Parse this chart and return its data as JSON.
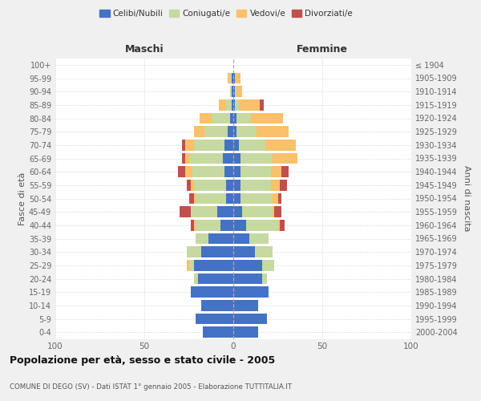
{
  "age_groups": [
    "0-4",
    "5-9",
    "10-14",
    "15-19",
    "20-24",
    "25-29",
    "30-34",
    "35-39",
    "40-44",
    "45-49",
    "50-54",
    "55-59",
    "60-64",
    "65-69",
    "70-74",
    "75-79",
    "80-84",
    "85-89",
    "90-94",
    "95-99",
    "100+"
  ],
  "birth_years": [
    "2000-2004",
    "1995-1999",
    "1990-1994",
    "1985-1989",
    "1980-1984",
    "1975-1979",
    "1970-1974",
    "1965-1969",
    "1960-1964",
    "1955-1959",
    "1950-1954",
    "1945-1949",
    "1940-1944",
    "1935-1939",
    "1930-1934",
    "1925-1929",
    "1920-1924",
    "1915-1919",
    "1910-1914",
    "1905-1909",
    "≤ 1904"
  ],
  "male_celibe": [
    17,
    21,
    18,
    24,
    20,
    22,
    18,
    14,
    7,
    9,
    4,
    4,
    5,
    6,
    5,
    3,
    2,
    1,
    1,
    1,
    0
  ],
  "male_coniugato": [
    0,
    0,
    0,
    0,
    2,
    3,
    8,
    7,
    14,
    15,
    17,
    18,
    18,
    19,
    17,
    13,
    10,
    3,
    1,
    1,
    0
  ],
  "male_vedovo": [
    0,
    0,
    0,
    0,
    0,
    1,
    0,
    0,
    1,
    0,
    1,
    2,
    4,
    2,
    5,
    6,
    7,
    4,
    0,
    1,
    0
  ],
  "male_divorziato": [
    0,
    0,
    0,
    0,
    0,
    0,
    0,
    0,
    2,
    6,
    3,
    2,
    4,
    2,
    2,
    0,
    0,
    0,
    0,
    0,
    0
  ],
  "female_celibe": [
    14,
    19,
    14,
    20,
    16,
    16,
    12,
    9,
    7,
    5,
    4,
    4,
    4,
    4,
    3,
    2,
    2,
    1,
    1,
    1,
    0
  ],
  "female_coniugata": [
    0,
    0,
    0,
    0,
    3,
    7,
    10,
    11,
    18,
    17,
    18,
    17,
    17,
    18,
    15,
    11,
    8,
    2,
    1,
    0,
    0
  ],
  "female_vedova": [
    0,
    0,
    0,
    0,
    0,
    0,
    0,
    0,
    1,
    1,
    3,
    5,
    6,
    14,
    17,
    18,
    18,
    12,
    3,
    3,
    0
  ],
  "female_divorziata": [
    0,
    0,
    0,
    0,
    0,
    0,
    0,
    0,
    3,
    4,
    2,
    4,
    4,
    0,
    0,
    0,
    0,
    2,
    0,
    0,
    0
  ],
  "colors": {
    "celibe": "#4472C4",
    "coniugato": "#C6D9A0",
    "vedovo": "#FAC06A",
    "divorziato": "#C0504D"
  },
  "xlim": 100,
  "title": "Popolazione per età, sesso e stato civile - 2005",
  "subtitle": "COMUNE DI DEGO (SV) - Dati ISTAT 1° gennaio 2005 - Elaborazione TUTTITALIA.IT",
  "ylabel_left": "Fasce di età",
  "ylabel_right": "Anni di nascita",
  "xlabel_maschi": "Maschi",
  "xlabel_femmine": "Femmine",
  "bg_color": "#f0f0f0",
  "plot_bg": "#ffffff"
}
